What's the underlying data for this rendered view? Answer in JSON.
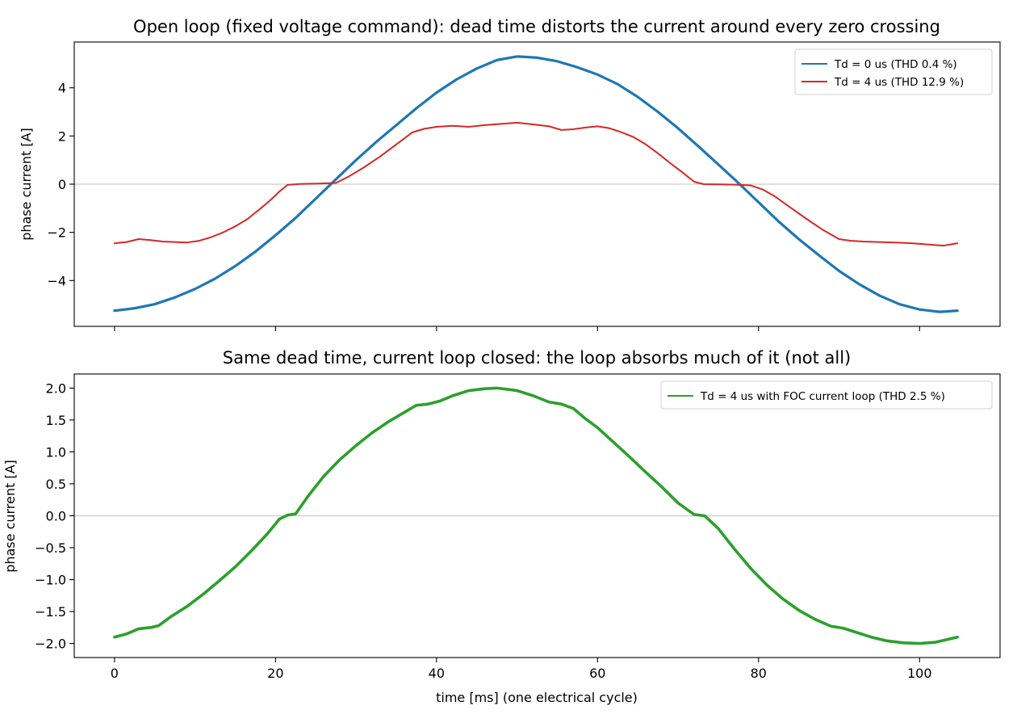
{
  "chart_data": [
    {
      "type": "line",
      "title": "Open loop (fixed voltage command): dead time distorts the current around every zero crossing",
      "xlabel": "",
      "ylabel": "phase current [A]",
      "xlim": [
        -5,
        110
      ],
      "ylim": [
        -5.9,
        5.9
      ],
      "xticks": [
        0,
        20,
        40,
        60,
        80,
        100
      ],
      "xtick_labels_visible": false,
      "yticks": [
        -4,
        -2,
        0,
        2,
        4
      ],
      "ytick_labels": [
        "−4",
        "−2",
        "0",
        "2",
        "4"
      ],
      "reference_line_y": 0,
      "grid": false,
      "legend": "top-right",
      "series": [
        {
          "name": "Td = 0 us  (THD 0.4 %)",
          "color": "#1f77b4",
          "x": [
            0,
            2.5,
            5,
            7.5,
            10,
            12.5,
            15,
            17.5,
            20,
            22.5,
            25,
            27.5,
            30,
            32.5,
            35,
            37.5,
            40,
            42.5,
            45,
            47.5,
            50,
            52.5,
            55,
            57.5,
            60,
            62.5,
            65,
            67.5,
            70,
            72.5,
            75,
            77.5,
            80,
            82.5,
            85,
            87.5,
            90,
            92.5,
            95,
            97.5,
            100,
            102.5,
            104.7
          ],
          "y": [
            -5.25,
            -5.15,
            -4.98,
            -4.7,
            -4.35,
            -3.92,
            -3.4,
            -2.8,
            -2.12,
            -1.4,
            -0.6,
            0.2,
            1.0,
            1.75,
            2.45,
            3.15,
            3.8,
            4.35,
            4.8,
            5.15,
            5.3,
            5.25,
            5.1,
            4.85,
            4.55,
            4.15,
            3.62,
            3.0,
            2.32,
            1.58,
            0.82,
            0.05,
            -0.75,
            -1.55,
            -2.28,
            -2.95,
            -3.6,
            -4.15,
            -4.62,
            -4.98,
            -5.2,
            -5.3,
            -5.25
          ]
        },
        {
          "name": "Td = 4 us  (THD 12.9 %)",
          "color": "#d62728",
          "x": [
            0,
            1.5,
            3,
            4.5,
            6,
            7.5,
            9,
            10.5,
            12,
            13.5,
            15,
            16.5,
            18,
            19.5,
            20.5,
            21.5,
            23,
            25,
            27.5,
            29,
            31,
            33,
            35,
            37,
            38.5,
            40,
            42,
            44,
            46,
            48,
            50,
            52,
            54,
            55.5,
            57,
            58.5,
            60,
            61.5,
            63,
            64.5,
            66,
            67.5,
            69,
            70.5,
            72,
            73.2,
            75,
            77,
            79,
            80.5,
            82,
            84,
            86,
            88,
            90,
            91.5,
            93,
            95,
            97,
            99,
            101,
            103,
            104.7
          ],
          "y": [
            -2.45,
            -2.4,
            -2.28,
            -2.32,
            -2.38,
            -2.4,
            -2.42,
            -2.35,
            -2.2,
            -2.0,
            -1.75,
            -1.45,
            -1.05,
            -0.62,
            -0.3,
            -0.03,
            0.01,
            0.02,
            0.05,
            0.3,
            0.7,
            1.15,
            1.65,
            2.15,
            2.3,
            2.38,
            2.42,
            2.38,
            2.45,
            2.5,
            2.55,
            2.48,
            2.4,
            2.25,
            2.28,
            2.35,
            2.4,
            2.32,
            2.15,
            1.95,
            1.65,
            1.28,
            0.88,
            0.5,
            0.1,
            0.0,
            -0.01,
            -0.02,
            -0.05,
            -0.22,
            -0.5,
            -0.98,
            -1.45,
            -1.9,
            -2.28,
            -2.35,
            -2.38,
            -2.4,
            -2.42,
            -2.45,
            -2.5,
            -2.55,
            -2.45
          ]
        }
      ]
    },
    {
      "type": "line",
      "title": "Same dead time, current loop closed: the loop absorbs much of it (not all)",
      "xlabel": "time [ms]  (one electrical cycle)",
      "ylabel": "phase current [A]",
      "xlim": [
        -5,
        110
      ],
      "ylim": [
        -2.22,
        2.22
      ],
      "xticks": [
        0,
        20,
        40,
        60,
        80,
        100
      ],
      "xtick_labels": [
        "0",
        "20",
        "40",
        "60",
        "80",
        "100"
      ],
      "yticks": [
        -2.0,
        -1.5,
        -1.0,
        -0.5,
        0.0,
        0.5,
        1.0,
        1.5,
        2.0
      ],
      "ytick_labels": [
        "−2.0",
        "−1.5",
        "−1.0",
        "−0.5",
        "0.0",
        "0.5",
        "1.0",
        "1.5",
        "2.0"
      ],
      "reference_line_y": 0,
      "grid": false,
      "legend": "top-right",
      "series": [
        {
          "name": "Td = 4 us with FOC current loop  (THD 2.5 %)",
          "color": "#2ca02c",
          "x": [
            0,
            1.5,
            3,
            4.5,
            5.5,
            7,
            9,
            11,
            13,
            15,
            17,
            19,
            20.5,
            21.5,
            22.5,
            24,
            26,
            28,
            30,
            32,
            34,
            36,
            37.5,
            39,
            40.5,
            42,
            44,
            46,
            47.5,
            50,
            52,
            54,
            55.5,
            57,
            58.5,
            60,
            62,
            64,
            66,
            68,
            70,
            72,
            73.3,
            75,
            77,
            79,
            81,
            83,
            85,
            87,
            89,
            90.5,
            92,
            94,
            96,
            98,
            100,
            102,
            104.7
          ],
          "y": [
            -1.9,
            -1.85,
            -1.77,
            -1.75,
            -1.72,
            -1.58,
            -1.42,
            -1.23,
            -1.02,
            -0.8,
            -0.55,
            -0.28,
            -0.05,
            0.01,
            0.03,
            0.3,
            0.62,
            0.88,
            1.1,
            1.3,
            1.47,
            1.62,
            1.73,
            1.75,
            1.8,
            1.88,
            1.96,
            1.99,
            2.0,
            1.96,
            1.88,
            1.78,
            1.75,
            1.68,
            1.52,
            1.38,
            1.15,
            0.92,
            0.68,
            0.45,
            0.2,
            0.02,
            0.0,
            -0.2,
            -0.52,
            -0.82,
            -1.08,
            -1.3,
            -1.48,
            -1.62,
            -1.73,
            -1.76,
            -1.82,
            -1.9,
            -1.96,
            -1.99,
            -2.0,
            -1.98,
            -1.9
          ]
        }
      ]
    }
  ]
}
